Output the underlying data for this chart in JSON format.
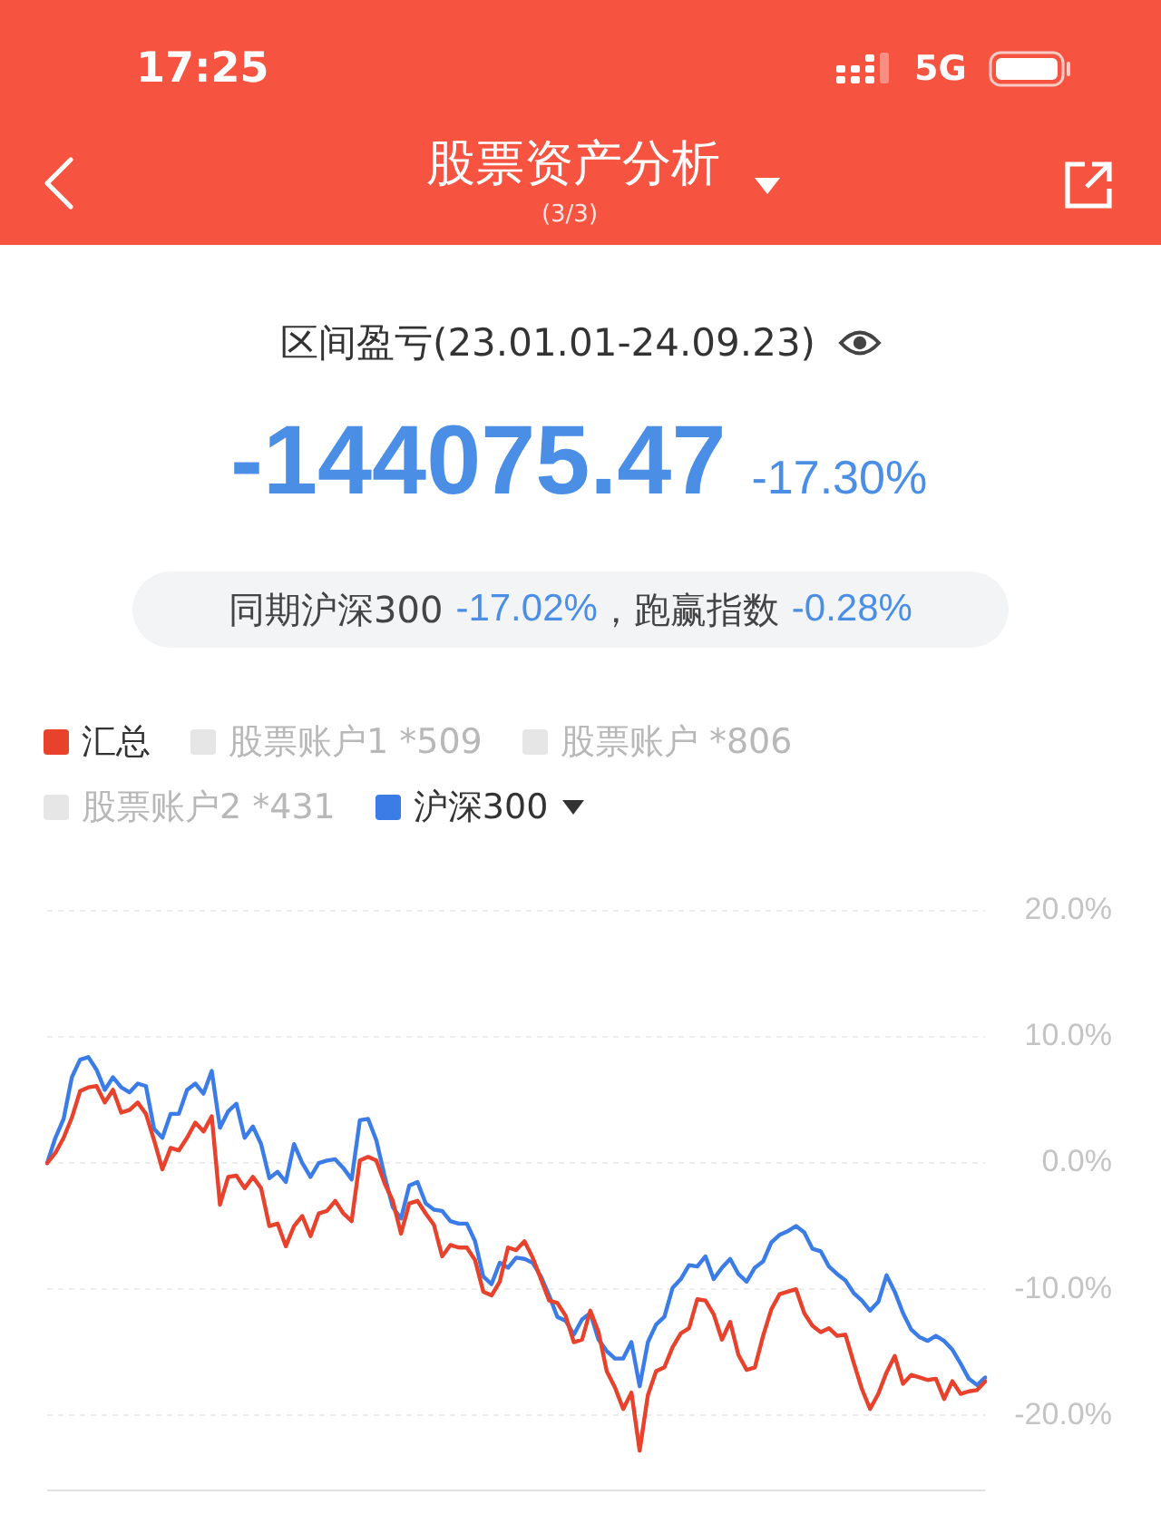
{
  "chart_data": {
    "type": "line",
    "title": "股票资产分析",
    "subtitle": "(3/3)",
    "annotations": [
      "17:25",
      "5G",
      "区间盈亏(23.01.01-24.09.23)",
      "-144075.47",
      "-17.30%",
      "同期沪深300",
      "-17.02%",
      "，跑赢指数",
      "-0.28%"
    ],
    "categories": [
      null,
      null,
      null,
      null,
      null,
      null,
      null,
      null,
      null,
      null,
      null,
      null,
      null,
      null,
      null,
      null,
      null,
      null,
      null,
      null,
      null,
      null,
      null,
      null,
      null,
      null,
      null,
      null,
      null,
      null,
      null,
      null,
      null,
      null,
      null,
      null,
      null,
      null,
      null,
      null,
      null,
      null,
      null,
      null,
      null,
      null,
      null,
      null,
      null,
      null,
      null,
      null,
      null,
      null,
      null,
      null,
      null,
      null,
      null,
      null,
      null,
      null,
      null,
      null,
      null,
      null,
      null,
      null,
      null,
      null,
      null,
      null,
      null,
      null,
      null,
      null,
      null,
      null,
      null,
      null,
      null,
      null,
      null,
      null,
      null,
      null,
      null,
      null,
      null,
      null,
      null,
      null,
      null,
      null,
      null,
      null,
      null,
      null,
      null,
      null,
      null,
      null,
      null,
      null,
      null,
      null,
      null,
      null,
      null,
      null,
      null,
      null,
      null,
      null,
      null
    ],
    "series": [
      {
        "name": "汇总",
        "color": "#e8412c",
        "values": [
          0,
          0.8,
          2.0,
          3.6,
          5.7,
          6.0,
          6.1,
          4.8,
          5.8,
          4.0,
          4.2,
          4.8,
          3.9,
          1.8,
          -0.5,
          1.2,
          1.0,
          2.0,
          3.2,
          2.5,
          3.7,
          -3.3,
          -1.1,
          -1.0,
          -2.0,
          -1.1,
          -2.0,
          -5.0,
          -4.8,
          -6.6,
          -5.0,
          -4.2,
          -5.8,
          -4.0,
          -3.8,
          -3.0,
          -4.0,
          -4.6,
          0.2,
          0.5,
          0.2,
          -1.6,
          -3.0,
          -5.6,
          -3.2,
          -3.0,
          -4.0,
          -4.9,
          -7.4,
          -6.5,
          -6.7,
          -6.7,
          -7.7,
          -10.2,
          -10.5,
          -9.4,
          -6.7,
          -6.9,
          -6.2,
          -7.5,
          -9.2,
          -10.9,
          -11.1,
          -12.1,
          -14.2,
          -14.0,
          -11.7,
          -13.4,
          -16.5,
          -17.8,
          -19.5,
          -18.2,
          -22.8,
          -18.4,
          -16.5,
          -16.2,
          -14.6,
          -13.5,
          -13.1,
          -10.8,
          -10.9,
          -12.0,
          -14.0,
          -12.6,
          -15.2,
          -16.4,
          -16.2,
          -13.7,
          -11.6,
          -10.4,
          -10.2,
          -10.0,
          -11.9,
          -12.9,
          -13.4,
          -13.1,
          -13.7,
          -13.6,
          -15.8,
          -17.9,
          -19.5,
          -18.3,
          -16.6,
          -15.3,
          -17.5,
          -16.8,
          -17.0,
          -17.2,
          -17.1,
          -18.7,
          -17.3,
          -18.3,
          -18.1,
          -18.0,
          -17.3
        ]
      },
      {
        "name": "股票账户1 *509",
        "color": "#e6e6e6",
        "values": [
          null,
          null,
          null,
          null,
          null,
          null,
          null,
          null,
          null,
          null,
          null,
          null,
          null,
          null,
          null,
          null,
          null,
          null,
          null,
          null,
          null,
          null,
          null,
          null,
          null,
          null,
          null,
          null,
          null,
          null,
          null,
          null,
          null,
          null,
          null,
          null,
          null,
          null,
          null,
          null,
          null,
          null,
          null,
          null,
          null,
          null,
          null,
          null,
          null,
          null,
          null,
          null,
          null,
          null,
          null,
          null,
          null,
          null,
          null,
          null,
          null,
          null,
          null,
          null,
          null,
          null,
          null,
          null,
          null,
          null,
          null,
          null,
          null,
          null,
          null,
          null,
          null,
          null,
          null,
          null,
          null,
          null,
          null,
          null,
          null,
          null,
          null,
          null,
          null,
          null,
          null,
          null,
          null,
          null,
          null,
          null,
          null,
          null,
          null,
          null,
          null,
          null,
          null,
          null,
          null,
          null,
          null,
          null,
          null,
          null,
          null,
          null,
          null,
          null,
          null
        ]
      },
      {
        "name": "股票账户 *806",
        "color": "#e6e6e6",
        "values": [
          null,
          null,
          null,
          null,
          null,
          null,
          null,
          null,
          null,
          null,
          null,
          null,
          null,
          null,
          null,
          null,
          null,
          null,
          null,
          null,
          null,
          null,
          null,
          null,
          null,
          null,
          null,
          null,
          null,
          null,
          null,
          null,
          null,
          null,
          null,
          null,
          null,
          null,
          null,
          null,
          null,
          null,
          null,
          null,
          null,
          null,
          null,
          null,
          null,
          null,
          null,
          null,
          null,
          null,
          null,
          null,
          null,
          null,
          null,
          null,
          null,
          null,
          null,
          null,
          null,
          null,
          null,
          null,
          null,
          null,
          null,
          null,
          null,
          null,
          null,
          null,
          null,
          null,
          null,
          null,
          null,
          null,
          null,
          null,
          null,
          null,
          null,
          null,
          null,
          null,
          null,
          null,
          null,
          null,
          null,
          null,
          null,
          null,
          null,
          null,
          null,
          null,
          null,
          null,
          null,
          null,
          null,
          null,
          null,
          null,
          null,
          null,
          null,
          null,
          null
        ]
      },
      {
        "name": "股票账户2 *431",
        "color": "#e6e6e6",
        "values": [
          null,
          null,
          null,
          null,
          null,
          null,
          null,
          null,
          null,
          null,
          null,
          null,
          null,
          null,
          null,
          null,
          null,
          null,
          null,
          null,
          null,
          null,
          null,
          null,
          null,
          null,
          null,
          null,
          null,
          null,
          null,
          null,
          null,
          null,
          null,
          null,
          null,
          null,
          null,
          null,
          null,
          null,
          null,
          null,
          null,
          null,
          null,
          null,
          null,
          null,
          null,
          null,
          null,
          null,
          null,
          null,
          null,
          null,
          null,
          null,
          null,
          null,
          null,
          null,
          null,
          null,
          null,
          null,
          null,
          null,
          null,
          null,
          null,
          null,
          null,
          null,
          null,
          null,
          null,
          null,
          null,
          null,
          null,
          null,
          null,
          null,
          null,
          null,
          null,
          null,
          null,
          null,
          null,
          null,
          null,
          null,
          null,
          null,
          null,
          null,
          null,
          null,
          null,
          null,
          null,
          null,
          null,
          null,
          null,
          null,
          null,
          null,
          null,
          null,
          null
        ]
      },
      {
        "name": "沪深300",
        "color": "#3b7ce6",
        "values": [
          0,
          2.0,
          3.5,
          6.8,
          8.2,
          8.4,
          7.4,
          5.8,
          6.8,
          6.0,
          5.6,
          6.3,
          6.1,
          2.7,
          2.0,
          3.9,
          3.9,
          5.8,
          6.3,
          5.5,
          7.3,
          2.8,
          4.1,
          4.7,
          2.0,
          2.9,
          1.5,
          -1.2,
          -0.7,
          -1.5,
          1.5,
          0.0,
          -1.1,
          0.0,
          0.2,
          0.3,
          -0.4,
          -1.3,
          3.4,
          3.5,
          1.8,
          -1.0,
          -3.5,
          -4.4,
          -1.8,
          -1.5,
          -3.2,
          -3.7,
          -3.8,
          -4.6,
          -4.8,
          -4.8,
          -6.2,
          -9.0,
          -9.6,
          -7.9,
          -8.3,
          -7.5,
          -7.6,
          -7.9,
          -9.0,
          -10.5,
          -12.2,
          -12.5,
          -13.6,
          -12.4,
          -11.9,
          -14.0,
          -14.9,
          -15.5,
          -15.5,
          -14.2,
          -17.7,
          -14.2,
          -12.8,
          -12.2,
          -9.9,
          -9.2,
          -8.1,
          -8.2,
          -7.4,
          -9.2,
          -8.3,
          -7.6,
          -8.8,
          -9.4,
          -8.3,
          -7.8,
          -6.3,
          -5.7,
          -5.4,
          -5.0,
          -5.5,
          -6.8,
          -7.0,
          -8.2,
          -8.8,
          -9.3,
          -10.3,
          -10.9,
          -11.7,
          -11.0,
          -8.9,
          -10.2,
          -11.9,
          -13.2,
          -13.8,
          -14.1,
          -13.7,
          -14.1,
          -14.8,
          -15.9,
          -17.1,
          -17.6,
          -17.0
        ]
      }
    ],
    "ylim": [
      -26,
      20
    ],
    "yticks": [
      {
        "value": -20,
        "label": "-20.0%"
      },
      {
        "value": -10,
        "label": "-10.0%"
      },
      {
        "value": 0,
        "label": "0.0%"
      },
      {
        "value": 10,
        "label": "10.0%"
      },
      {
        "value": 20,
        "label": "20.0%"
      }
    ],
    "grid": "y",
    "legend": "top left",
    "tick_labels": "y"
  }
}
